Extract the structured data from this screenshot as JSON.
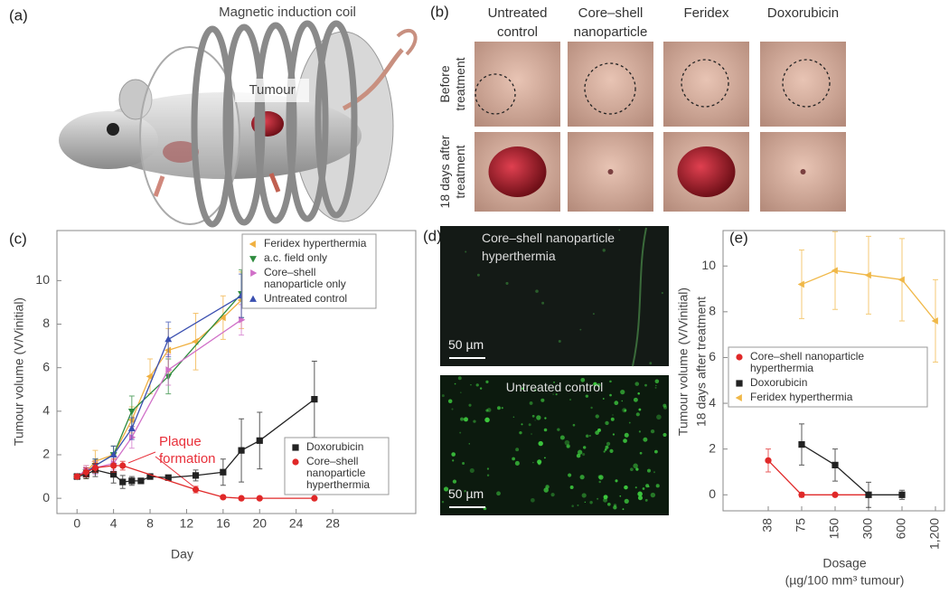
{
  "panel_a": {
    "label": "(a)",
    "title": "Magnetic induction coil",
    "tumour_label": "Tumour"
  },
  "panel_b": {
    "label": "(b)",
    "columns": [
      "Untreated control",
      "Core–shell nanoparticle",
      "Feridex",
      "Doxorubicin"
    ],
    "rows": [
      "Before treatment",
      "18 days after treatment"
    ]
  },
  "panel_d": {
    "label": "(d)",
    "images": [
      {
        "caption": "Core–shell nanoparticle hyperthermia",
        "scale_bar": "50 µm"
      },
      {
        "caption": "Untreated control",
        "scale_bar": "50 µm"
      }
    ]
  },
  "chart_data": [
    {
      "panel_label": "(c)",
      "type": "line",
      "xlabel": "Day",
      "ylabel": "Tumour volume (V/Vinitial)",
      "annotation": [
        "Plaque",
        "formation"
      ],
      "annotation_color": "#e8303a",
      "xlim": [
        -2.2,
        37.1
      ],
      "ylim": [
        -0.7,
        12.3
      ],
      "xticks": [
        0,
        4,
        8,
        12,
        16,
        20,
        24,
        28
      ],
      "yticks": [
        0,
        2,
        4,
        6,
        8,
        10
      ],
      "series": [
        {
          "name": "Feridex hyperthermia",
          "color": "#f0b040",
          "marker": "triangle-left",
          "legend_loc": "upper right",
          "x": [
            0,
            1,
            2,
            4,
            6,
            8,
            10,
            13,
            16,
            18
          ],
          "values": [
            1,
            1.2,
            1.7,
            2.0,
            3.6,
            5.6,
            6.8,
            7.2,
            8.3,
            9.1
          ],
          "errors": [
            0.1,
            0.3,
            0.5,
            0.4,
            0.6,
            0.8,
            1.0,
            1.3,
            1.0,
            1.3
          ]
        },
        {
          "name": "a.c. field only",
          "color": "#2e8b3e",
          "marker": "triangle-down",
          "legend_loc": "upper right",
          "x": [
            0,
            1,
            2,
            4,
            6,
            10,
            18
          ],
          "values": [
            1,
            1.2,
            1.5,
            2.0,
            4.0,
            5.6,
            9.4
          ],
          "errors": [
            0.1,
            0.2,
            0.3,
            0.4,
            0.7,
            0.8,
            1.1
          ]
        },
        {
          "name": "Core–shell nanoparticle only",
          "color": "#d070c8",
          "marker": "triangle-right",
          "legend_loc": "upper right",
          "x": [
            0,
            1,
            2,
            4,
            6,
            10,
            18
          ],
          "values": [
            1,
            1.3,
            1.4,
            1.6,
            2.8,
            5.9,
            8.2
          ],
          "errors": [
            0.1,
            0.2,
            0.3,
            0.3,
            0.5,
            0.7,
            0.7
          ]
        },
        {
          "name": "Untreated control",
          "color": "#3a4fb0",
          "marker": "triangle-up",
          "legend_loc": "upper right",
          "x": [
            0,
            1,
            2,
            4,
            6,
            10,
            18
          ],
          "values": [
            1,
            1.2,
            1.5,
            2.0,
            3.2,
            7.3,
            9.3
          ],
          "errors": [
            0.1,
            0.2,
            0.3,
            0.4,
            0.5,
            0.8,
            1.0
          ]
        },
        {
          "name": "Doxorubicin",
          "color": "#222222",
          "marker": "square",
          "legend_loc": "lower right",
          "x": [
            0,
            1,
            2,
            4,
            5,
            6,
            7,
            8,
            10,
            13,
            16,
            18,
            20,
            26
          ],
          "values": [
            1,
            1.1,
            1.3,
            1.1,
            0.75,
            0.8,
            0.8,
            1.0,
            0.95,
            1.05,
            1.2,
            2.2,
            2.65,
            4.55
          ],
          "errors": [
            0.1,
            0.2,
            0.3,
            0.4,
            0.3,
            0.2,
            0.1,
            0.1,
            0.1,
            0.25,
            0.6,
            1.45,
            1.3,
            1.75
          ]
        },
        {
          "name": "Core–shell nanoparticle hyperthermia",
          "color": "#e02828",
          "marker": "circle",
          "legend_loc": "lower right",
          "x": [
            0,
            1,
            2,
            4,
            5,
            13,
            16,
            18,
            20,
            26
          ],
          "values": [
            1,
            1.2,
            1.4,
            1.5,
            1.5,
            0.4,
            0.05,
            0,
            0,
            0
          ],
          "errors": [
            0.1,
            0.2,
            0.2,
            0.3,
            0.2,
            0.15,
            0.05,
            0.05,
            0.05,
            0.05
          ]
        }
      ]
    },
    {
      "panel_label": "(e)",
      "type": "line",
      "xlabel": [
        "Dosage",
        "(µg/100 mm³ tumour)"
      ],
      "ylabel": [
        "Tumour volume (V/Vinitial)",
        "18 days after treatment"
      ],
      "categories": [
        "38",
        "75",
        "150",
        "300",
        "600",
        "1,200"
      ],
      "ylim": [
        -0.7,
        11.55
      ],
      "yticks": [
        0,
        2,
        4,
        6,
        8,
        10
      ],
      "series": [
        {
          "name": "Core–shell nanoparticle hyperthermia",
          "color": "#e02828",
          "marker": "circle",
          "legend_loc": "center left",
          "values": [
            1.5,
            0,
            0,
            0,
            null,
            null
          ],
          "errors": [
            0.5,
            0.1,
            0.05,
            0.05,
            null,
            null
          ]
        },
        {
          "name": "Doxorubicin",
          "color": "#222222",
          "marker": "square",
          "legend_loc": "center left",
          "values": [
            null,
            2.2,
            1.3,
            0,
            0,
            null
          ],
          "errors": [
            null,
            0.9,
            0.7,
            0.55,
            0.2,
            null
          ]
        },
        {
          "name": "Feridex hyperthermia",
          "color": "#f0b848",
          "marker": "triangle-left",
          "legend_loc": "center left",
          "values": [
            null,
            9.2,
            9.8,
            9.6,
            9.4,
            7.6
          ],
          "errors": [
            null,
            1.5,
            1.7,
            1.7,
            1.8,
            1.8
          ]
        }
      ]
    }
  ]
}
